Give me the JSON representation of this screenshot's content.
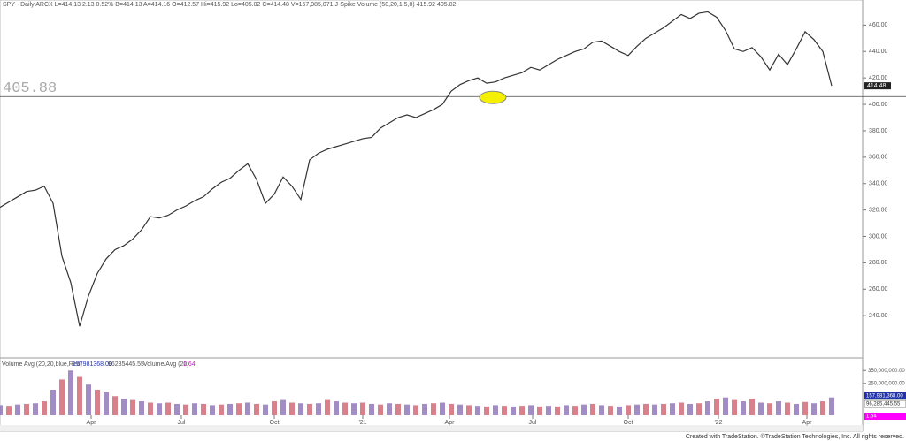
{
  "chart_data": {
    "type": "line",
    "title": "SPY - Daily  ARCX  L=414.13  2.13  0.52%  B=414.13  A=414.16  O=412.57  Hi=415.92  Lo=405.02  C=414.48  V=157,985,071  J-Spike Volume (50,20,1.5,0)  415.92  405.02",
    "color": "#333333",
    "x": [
      0,
      1,
      2,
      3,
      4,
      5,
      6,
      7,
      8,
      9,
      10,
      11,
      12,
      13,
      14,
      15,
      16,
      17,
      18,
      19,
      20,
      21,
      22,
      23,
      24,
      25,
      26,
      27,
      28,
      29,
      30,
      31,
      32,
      33,
      34,
      35,
      36,
      37,
      38,
      39,
      40,
      41,
      42,
      43,
      44,
      45,
      46,
      47,
      48,
      49,
      50,
      51,
      52,
      53,
      54,
      55,
      56,
      57,
      58,
      59,
      60,
      61,
      62,
      63,
      64,
      65,
      66,
      67,
      68,
      69,
      70,
      71,
      72,
      73,
      74,
      75,
      76,
      77,
      78,
      79,
      80,
      81,
      82,
      83,
      84,
      85,
      86,
      87,
      88,
      89,
      90,
      91,
      92,
      93,
      94
    ],
    "values": [
      322,
      326,
      330,
      334,
      335,
      338,
      325,
      285,
      265,
      232,
      255,
      272,
      283,
      290,
      293,
      298,
      305,
      315,
      314,
      316,
      320,
      323,
      327,
      330,
      336,
      341,
      344,
      350,
      355,
      343,
      325,
      332,
      345,
      338,
      328,
      358,
      363,
      366,
      368,
      370,
      372,
      374,
      375,
      382,
      386,
      390,
      392,
      390,
      393,
      396,
      400,
      410,
      415,
      418,
      420,
      416,
      417,
      420,
      422,
      424,
      428,
      426,
      430,
      434,
      437,
      440,
      442,
      447,
      448,
      444,
      440,
      437,
      444,
      450,
      454,
      458,
      463,
      468,
      465,
      469,
      470,
      466,
      456,
      442,
      440,
      443,
      436,
      426,
      438,
      430,
      442,
      455,
      449,
      440,
      414
    ],
    "xlim": [
      0,
      97.5
    ],
    "xticks": [
      {
        "value": 10.3,
        "label": "Apr"
      },
      {
        "value": 20.5,
        "label": "Jul"
      },
      {
        "value": 31,
        "label": "Oct"
      },
      {
        "value": 41,
        "label": "'21"
      },
      {
        "value": 50.8,
        "label": "Apr"
      },
      {
        "value": 60.2,
        "label": "Jul"
      },
      {
        "value": 71,
        "label": "Oct"
      },
      {
        "value": 81.2,
        "label": "'22"
      },
      {
        "value": 91.2,
        "label": "Apr"
      }
    ],
    "ylim": [
      208,
      479
    ],
    "yticks": [
      {
        "value": 240,
        "label": "240.00"
      },
      {
        "value": 260,
        "label": "260.00"
      },
      {
        "value": 280,
        "label": "280.00"
      },
      {
        "value": 300,
        "label": "300.00"
      },
      {
        "value": 320,
        "label": "320.00"
      },
      {
        "value": 340,
        "label": "340.00"
      },
      {
        "value": 360,
        "label": "360.00"
      },
      {
        "value": 380,
        "label": "380.00"
      },
      {
        "value": 400,
        "label": "400.00"
      },
      {
        "value": 420,
        "label": "420.00"
      },
      {
        "value": 440,
        "label": "440.00"
      },
      {
        "value": 460,
        "label": "460.00"
      }
    ],
    "level": {
      "value": 405.88,
      "label": "405.88"
    },
    "last_price_label": "414.48",
    "volume": {
      "legend": "Volume Avg (20,20,blue,Red)",
      "value_1": "157981368.00",
      "value_2": "96285445.55",
      "ratio_legend": "Volume/Avg (20)",
      "ratio": "1.64",
      "color": "#8a6fb8",
      "ylim": [
        0,
        400000000
      ],
      "yticks": [
        {
          "value": 250000000,
          "label": "250,000,000.00"
        },
        {
          "value": 350000000,
          "label": "350,000,000.00"
        }
      ],
      "axis_value_1": "157,981,368.00",
      "axis_value_2": "96,285,445.55",
      "axis_ratio": "1.64",
      "values": [
        80000000,
        75000000,
        85000000,
        90000000,
        95000000,
        110000000,
        200000000,
        280000000,
        350000000,
        300000000,
        240000000,
        200000000,
        180000000,
        150000000,
        130000000,
        120000000,
        110000000,
        100000000,
        95000000,
        100000000,
        90000000,
        85000000,
        95000000,
        90000000,
        80000000,
        85000000,
        90000000,
        95000000,
        100000000,
        90000000,
        85000000,
        110000000,
        120000000,
        100000000,
        95000000,
        90000000,
        95000000,
        120000000,
        110000000,
        100000000,
        95000000,
        100000000,
        90000000,
        85000000,
        95000000,
        90000000,
        85000000,
        80000000,
        90000000,
        95000000,
        100000000,
        90000000,
        85000000,
        80000000,
        75000000,
        70000000,
        80000000,
        75000000,
        70000000,
        75000000,
        80000000,
        70000000,
        75000000,
        70000000,
        80000000,
        75000000,
        85000000,
        90000000,
        80000000,
        75000000,
        70000000,
        80000000,
        85000000,
        90000000,
        85000000,
        90000000,
        95000000,
        100000000,
        90000000,
        95000000,
        110000000,
        130000000,
        140000000,
        120000000,
        110000000,
        130000000,
        100000000,
        95000000,
        110000000,
        100000000,
        90000000,
        105000000,
        95000000,
        110000000,
        140000000
      ]
    },
    "footer": "Created with TradeStation. ©TradeStation Technologies, Inc. All rights reserved."
  }
}
